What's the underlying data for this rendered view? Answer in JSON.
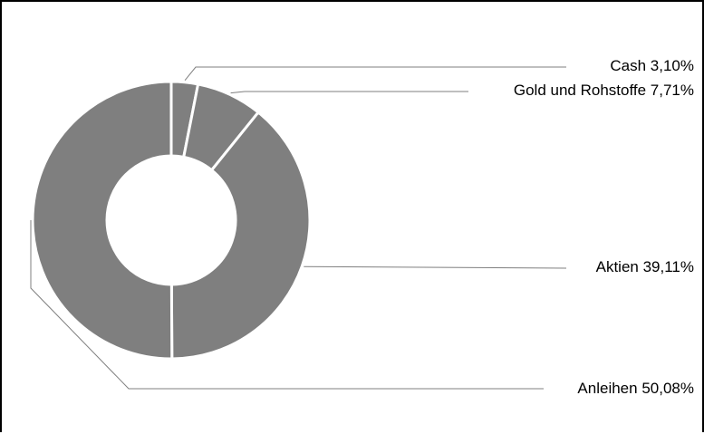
{
  "chart_data": {
    "type": "pie",
    "variant": "donut",
    "title": "",
    "slices": [
      {
        "name": "Cash",
        "value_label": "3,10%",
        "value": 3.1,
        "color": "#7f7f7f"
      },
      {
        "name": "Gold und Rohstoffe",
        "value_label": "7,71%",
        "value": 7.71,
        "color": "#7f7f7f"
      },
      {
        "name": "Aktien",
        "value_label": "39,11%",
        "value": 39.11,
        "color": "#7f7f7f"
      },
      {
        "name": "Anleihen",
        "value_label": "50,08%",
        "value": 50.08,
        "color": "#7f7f7f"
      }
    ],
    "legend": "none",
    "colors": {
      "slice": "#7f7f7f",
      "separator": "#ffffff",
      "leader_line": "#7f7f7f",
      "text": "#000000"
    }
  }
}
